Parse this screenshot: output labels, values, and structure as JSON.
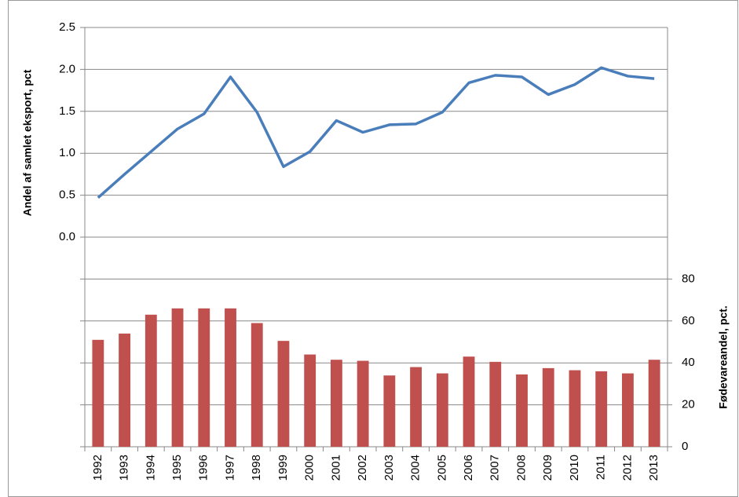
{
  "chart_data": {
    "type": "combo",
    "y_label": "Andel af samlet eksport, pct",
    "y2_label": "Fødevareandel, pct.",
    "categories": [
      "1992",
      "1993",
      "1994",
      "1995",
      "1996",
      "1997",
      "1998",
      "1999",
      "2000",
      "2001",
      "2002",
      "2003",
      "2004",
      "2005",
      "2006",
      "2007",
      "2008",
      "2009",
      "2010",
      "2011",
      "2012",
      "2013"
    ],
    "series": [
      {
        "type": "line",
        "color": "#4a7ebb",
        "axis": "y",
        "values": [
          0.47,
          0.75,
          1.02,
          1.29,
          1.47,
          1.91,
          1.49,
          0.84,
          1.02,
          1.39,
          1.25,
          1.34,
          1.35,
          1.49,
          1.84,
          1.93,
          1.91,
          1.7,
          1.82,
          2.02,
          1.92,
          1.89
        ]
      },
      {
        "type": "bar",
        "color": "#c0504d",
        "axis": "y2",
        "values": [
          51,
          54,
          63,
          66,
          66,
          66,
          59,
          50.5,
          44,
          41.5,
          41,
          34,
          38,
          35,
          43,
          40.5,
          34.5,
          37.5,
          36.5,
          36,
          35,
          41.5
        ]
      }
    ],
    "ylim": [
      -2.5,
      2.5
    ],
    "yticks": [
      {
        "value": 0,
        "label": "0.0"
      },
      0.5,
      {
        "value": 1,
        "label": "1.0"
      },
      1.5,
      {
        "value": 2,
        "label": "2.0"
      },
      2.5
    ],
    "y2lim": [
      0,
      200
    ],
    "y2ticks": [
      0,
      20,
      40,
      60,
      80
    ],
    "grid": true
  }
}
